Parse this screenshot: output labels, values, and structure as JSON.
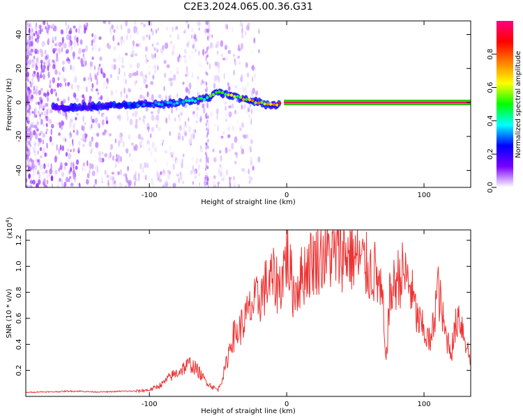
{
  "title": "C2E3.2024.065.00.36.G31",
  "chart_data": [
    {
      "type": "heatmap",
      "xlabel": "Height of straight line (km)",
      "ylabel": "Frequency (Hz)",
      "xlim": [
        -190,
        134
      ],
      "ylim": [
        -50,
        48
      ],
      "xticks": [
        -100,
        0,
        100
      ],
      "yticks": [
        -40,
        -20,
        0,
        20,
        40
      ],
      "colorbar": {
        "label": "Normalized spectral amplitude",
        "range": [
          0,
          1
        ],
        "ticks": [
          "0.0",
          "0.2",
          "0.4",
          "0.6",
          "0.8"
        ],
        "colors": [
          "#ffffff",
          "#7b00ff",
          "#0000ff",
          "#00ffff",
          "#00ff00",
          "#ffff00",
          "#ff8000",
          "#ff0000",
          "#ff0080"
        ]
      },
      "ridge": {
        "x": [
          -170,
          -150,
          -130,
          -110,
          -90,
          -80,
          -70,
          -60,
          -50,
          -45,
          -40,
          -35,
          -30,
          -25,
          -20,
          -15,
          -10,
          -5,
          0,
          20,
          60,
          100,
          134
        ],
        "y": [
          -3,
          -3,
          -2,
          -1,
          -1,
          0,
          1,
          2,
          6,
          5,
          4,
          3,
          2,
          1,
          0,
          -1,
          -2,
          -1,
          0,
          0,
          0,
          0,
          0
        ],
        "amplitude": [
          0.15,
          0.2,
          0.25,
          0.3,
          0.35,
          0.4,
          0.45,
          0.5,
          0.55,
          0.6,
          0.62,
          0.65,
          0.7,
          0.72,
          0.75,
          0.78,
          0.8,
          0.85,
          0.9,
          0.95,
          0.95,
          0.95,
          0.95
        ]
      }
    },
    {
      "type": "line",
      "xlabel": "Height of straight line (km)",
      "ylabel": "SNR (10 * v/v)",
      "yscale_label": "(x10",
      "yscale_exp": "4",
      "xlim": [
        -190,
        134
      ],
      "ylim": [
        0,
        12800
      ],
      "xticks": [
        -100,
        0,
        100
      ],
      "yticks": [
        "0.2",
        "0.4",
        "0.6",
        "0.8",
        "1.0",
        "1.2"
      ],
      "series": [
        {
          "color": "#ee3333",
          "x": [
            -190,
            -180,
            -170,
            -160,
            -150,
            -140,
            -130,
            -120,
            -110,
            -100,
            -95,
            -90,
            -85,
            -80,
            -75,
            -70,
            -65,
            -60,
            -55,
            -50,
            -45,
            -40,
            -35,
            -30,
            -25,
            -20,
            -15,
            -10,
            -5,
            0,
            5,
            10,
            15,
            20,
            25,
            30,
            35,
            40,
            45,
            50,
            55,
            60,
            65,
            70,
            72,
            75,
            80,
            85,
            90,
            95,
            100,
            105,
            110,
            115,
            120,
            125,
            130,
            134
          ],
          "y": [
            300,
            350,
            350,
            400,
            400,
            350,
            350,
            400,
            400,
            500,
            700,
            1000,
            1500,
            1800,
            2200,
            2500,
            2000,
            1300,
            800,
            500,
            2000,
            4500,
            5000,
            6000,
            7000,
            7500,
            8500,
            9000,
            8500,
            11000,
            8000,
            9000,
            10000,
            10500,
            10800,
            11000,
            10800,
            11000,
            11000,
            10700,
            10300,
            9700,
            9500,
            7000,
            2500,
            7500,
            9000,
            9500,
            8500,
            6000,
            5000,
            4000,
            8500,
            5000,
            3500,
            6500,
            4500,
            2500
          ]
        }
      ]
    }
  ]
}
